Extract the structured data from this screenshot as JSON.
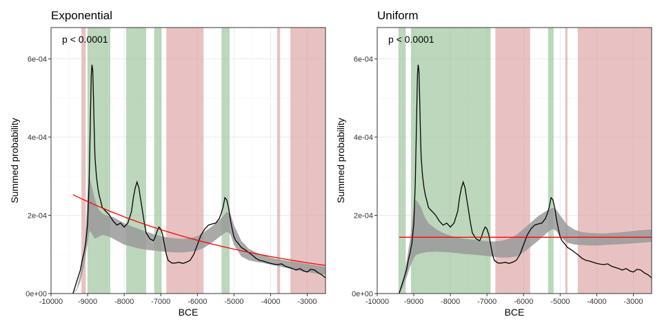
{
  "chart_data": [
    {
      "type": "line",
      "title": "Exponential",
      "xlabel": "BCE",
      "ylabel": "Summed probability",
      "annotation": "p < 0.0001",
      "xlim": [
        -10000,
        -2500
      ],
      "ylim": [
        0,
        0.00068
      ],
      "x_ticks": [
        -10000,
        -9000,
        -8000,
        -7000,
        -6000,
        -5000,
        -4000,
        -3000
      ],
      "x_tick_labels": [
        "-10000",
        "-9000",
        "-8000",
        "-7000",
        "-6000",
        "-5000",
        "-4000",
        "-3000"
      ],
      "y_ticks": [
        0,
        0.0002,
        0.0004,
        0.0006
      ],
      "y_tick_labels": [
        "0e+00",
        "2e-04",
        "4e-04",
        "6e-04"
      ],
      "grid": true,
      "colors": {
        "positive": "#8fbc8f",
        "negative": "#d99a9a",
        "envelope": "#9a9a9a",
        "observed": "#000000",
        "model": "#ff0000"
      },
      "positive_regions": [
        [
          -9000,
          -8380
        ],
        [
          -7950,
          -7400
        ],
        [
          -7180,
          -6980
        ],
        [
          -5340,
          -5120
        ]
      ],
      "negative_regions": [
        [
          -9170,
          -9050
        ],
        [
          -6850,
          -5830
        ],
        [
          -3820,
          -3740
        ],
        [
          -3460,
          -2500
        ]
      ],
      "envelope": {
        "x": [
          -9400,
          -9300,
          -9200,
          -9100,
          -9050,
          -9000,
          -8950,
          -8900,
          -8800,
          -8700,
          -8600,
          -8500,
          -8400,
          -8300,
          -8200,
          -8000,
          -7800,
          -7600,
          -7400,
          -7200,
          -7000,
          -6800,
          -6600,
          -6400,
          -6200,
          -6000,
          -5800,
          -5600,
          -5400,
          -5200,
          -5100,
          -5000,
          -4800,
          -4600,
          -4400,
          -4200,
          -4000,
          -3800,
          -3600,
          -3400,
          -3200,
          -3000,
          -2800,
          -2600,
          -2500
        ],
        "lower": [
          0,
          8e-06,
          3e-05,
          7e-05,
          0.0001,
          0.00013,
          0.00016,
          0.000155,
          0.00014,
          0.000145,
          0.00015,
          0.000148,
          0.000145,
          0.00014,
          0.000135,
          0.000125,
          0.00012,
          0.000115,
          0.000112,
          0.00011,
          0.000108,
          0.000106,
          0.000105,
          0.000105,
          0.000107,
          0.00011,
          0.000118,
          0.00013,
          0.000145,
          0.000158,
          0.000152,
          0.000125,
          9.5e-05,
          8.5e-05,
          8.1e-05,
          7.8e-05,
          7.4e-05,
          7e-05,
          6.6e-05,
          6.2e-05,
          5.8e-05,
          5.5e-05,
          5.2e-05,
          5e-05,
          4.9e-05
        ],
        "upper": [
          0,
          1.2e-05,
          5e-05,
          0.00011,
          0.00016,
          0.00026,
          0.0003,
          0.00028,
          0.00024,
          0.000215,
          0.000205,
          0.0002,
          0.000198,
          0.000195,
          0.00019,
          0.00018,
          0.000172,
          0.000165,
          0.000158,
          0.000152,
          0.000147,
          0.000143,
          0.000141,
          0.00014,
          0.000142,
          0.000147,
          0.000158,
          0.000172,
          0.000188,
          0.000208,
          0.000205,
          0.000175,
          0.000135,
          0.000115,
          0.000105,
          9.8e-05,
          9.2e-05,
          8.8e-05,
          8.5e-05,
          8.2e-05,
          7.9e-05,
          7.6e-05,
          7.3e-05,
          7e-05,
          6.8e-05
        ]
      },
      "observed": {
        "x": [
          -9400,
          -9300,
          -9200,
          -9150,
          -9100,
          -9050,
          -9000,
          -8960,
          -8930,
          -8900,
          -8880,
          -8860,
          -8840,
          -8820,
          -8800,
          -8760,
          -8720,
          -8680,
          -8650,
          -8600,
          -8550,
          -8500,
          -8450,
          -8400,
          -8300,
          -8200,
          -8100,
          -8000,
          -7900,
          -7800,
          -7750,
          -7700,
          -7650,
          -7600,
          -7550,
          -7500,
          -7450,
          -7400,
          -7300,
          -7200,
          -7150,
          -7100,
          -7050,
          -7000,
          -6950,
          -6900,
          -6850,
          -6800,
          -6700,
          -6600,
          -6500,
          -6400,
          -6300,
          -6200,
          -6100,
          -6000,
          -5900,
          -5800,
          -5700,
          -5600,
          -5500,
          -5400,
          -5350,
          -5300,
          -5250,
          -5200,
          -5150,
          -5100,
          -5050,
          -5000,
          -4950,
          -4900,
          -4850,
          -4800,
          -4700,
          -4600,
          -4500,
          -4400,
          -4300,
          -4200,
          -4100,
          -4000,
          -3900,
          -3800,
          -3700,
          -3600,
          -3500,
          -3400,
          -3300,
          -3200,
          -3100,
          -3000,
          -2900,
          -2800,
          -2700,
          -2600,
          -2500
        ],
        "y": [
          0,
          3e-05,
          6e-05,
          8.5e-05,
          0.000105,
          0.00013,
          0.00018,
          0.00028,
          0.00042,
          0.00056,
          0.000585,
          0.00057,
          0.0005,
          0.00042,
          0.00035,
          0.0003,
          0.00027,
          0.00025,
          0.00024,
          0.00022,
          0.000215,
          0.00021,
          0.000205,
          0.0002,
          0.000185,
          0.000175,
          0.00018,
          0.00017,
          0.00018,
          0.00021,
          0.000245,
          0.00027,
          0.000285,
          0.00027,
          0.00024,
          0.00021,
          0.00018,
          0.000155,
          0.00014,
          0.000135,
          0.000145,
          0.00016,
          0.00017,
          0.000165,
          0.00015,
          0.000125,
          0.0001,
          8.5e-05,
          7.8e-05,
          7.8e-05,
          8e-05,
          7.7e-05,
          8e-05,
          8.5e-05,
          0.0001,
          0.000125,
          0.00015,
          0.000165,
          0.000175,
          0.000178,
          0.00018,
          0.000192,
          0.000205,
          0.00022,
          0.000245,
          0.00024,
          0.00022,
          0.00019,
          0.000165,
          0.000145,
          0.000135,
          0.00013,
          0.000124,
          0.000118,
          0.000112,
          0.000105,
          9.8e-05,
          9e-05,
          8.5e-05,
          8.3e-05,
          8e-05,
          7.7e-05,
          7.5e-05,
          7.4e-05,
          7.6e-05,
          7e-05,
          6.7e-05,
          6.4e-05,
          6e-05,
          6.4e-05,
          5.8e-05,
          5.5e-05,
          6.2e-05,
          6e-05,
          5.3e-05,
          4.8e-05,
          4e-05
        ]
      },
      "model": {
        "form": "exponential",
        "x_start": -9400,
        "y_start": 0.000253,
        "x_end": -2500,
        "y_end": 7.2e-05
      }
    },
    {
      "type": "line",
      "title": "Uniform",
      "xlabel": "BCE",
      "ylabel": "Summed probability",
      "annotation": "p < 0.0001",
      "xlim": [
        -10000,
        -2500
      ],
      "ylim": [
        0,
        0.00068
      ],
      "x_ticks": [
        -10000,
        -9000,
        -8000,
        -7000,
        -6000,
        -5000,
        -4000,
        -3000
      ],
      "x_tick_labels": [
        "-10000",
        "-9000",
        "-8000",
        "-7000",
        "-6000",
        "-5000",
        "-4000",
        "-3000"
      ],
      "y_ticks": [
        0,
        0.0002,
        0.0004,
        0.0006
      ],
      "y_tick_labels": [
        "0e+00",
        "2e-04",
        "4e-04",
        "6e-04"
      ],
      "grid": true,
      "colors": {
        "positive": "#8fbc8f",
        "negative": "#d99a9a",
        "envelope": "#9a9a9a",
        "observed": "#000000",
        "model": "#ff0000"
      },
      "positive_regions": [
        [
          -9420,
          -9220
        ],
        [
          -9080,
          -6900
        ],
        [
          -5330,
          -5180
        ]
      ],
      "negative_regions": [
        [
          -6770,
          -5820
        ],
        [
          -4860,
          -4800
        ],
        [
          -4520,
          -2500
        ]
      ],
      "envelope": {
        "x": [
          -9400,
          -9300,
          -9200,
          -9100,
          -9000,
          -8950,
          -8900,
          -8800,
          -8700,
          -8600,
          -8400,
          -8200,
          -8000,
          -7800,
          -7600,
          -7400,
          -7200,
          -7000,
          -6800,
          -6600,
          -6400,
          -6200,
          -6000,
          -5800,
          -5600,
          -5400,
          -5300,
          -5200,
          -5100,
          -5000,
          -4800,
          -4600,
          -4400,
          -4200,
          -4000,
          -3800,
          -3600,
          -3400,
          -3200,
          -3000,
          -2800,
          -2600,
          -2500
        ],
        "lower": [
          0,
          1.5e-05,
          4e-05,
          7e-05,
          9e-05,
          9.8e-05,
          0.0001,
          0.000103,
          0.000105,
          0.000106,
          0.000107,
          0.000106,
          0.000105,
          0.000103,
          0.000101,
          0.0001,
          9.8e-05,
          9.6e-05,
          9.4e-05,
          9.2e-05,
          9.2e-05,
          9.5e-05,
          0.000105,
          0.00012,
          0.000135,
          0.000152,
          0.00016,
          0.000165,
          0.00016,
          0.000145,
          0.00013,
          0.000125,
          0.000124,
          0.000123,
          0.000123,
          0.000124,
          0.000125,
          0.000126,
          0.000127,
          0.000128,
          0.00013,
          0.000131,
          0.000132
        ],
        "upper": [
          0,
          3e-05,
          8e-05,
          0.00014,
          0.00022,
          0.00024,
          0.000235,
          0.00022,
          0.000195,
          0.00018,
          0.000165,
          0.000155,
          0.000148,
          0.000143,
          0.00014,
          0.000138,
          0.000136,
          0.000134,
          0.000133,
          0.000135,
          0.00014,
          0.00015,
          0.000165,
          0.000182,
          0.000198,
          0.00021,
          0.000215,
          0.00022,
          0.000214,
          0.0002,
          0.000175,
          0.000163,
          0.000157,
          0.000155,
          0.000154,
          0.000154,
          0.000155,
          0.000156,
          0.000158,
          0.00016,
          0.000162,
          0.000163,
          0.000164
        ]
      },
      "observed": {
        "x": [
          -9400,
          -9300,
          -9200,
          -9150,
          -9100,
          -9050,
          -9000,
          -8960,
          -8930,
          -8900,
          -8880,
          -8860,
          -8840,
          -8820,
          -8800,
          -8760,
          -8720,
          -8680,
          -8650,
          -8600,
          -8550,
          -8500,
          -8450,
          -8400,
          -8300,
          -8200,
          -8100,
          -8000,
          -7900,
          -7800,
          -7750,
          -7700,
          -7650,
          -7600,
          -7550,
          -7500,
          -7450,
          -7400,
          -7300,
          -7200,
          -7150,
          -7100,
          -7050,
          -7000,
          -6950,
          -6900,
          -6850,
          -6800,
          -6700,
          -6600,
          -6500,
          -6400,
          -6300,
          -6200,
          -6100,
          -6000,
          -5900,
          -5800,
          -5700,
          -5600,
          -5500,
          -5400,
          -5350,
          -5300,
          -5250,
          -5200,
          -5150,
          -5100,
          -5050,
          -5000,
          -4950,
          -4900,
          -4850,
          -4800,
          -4700,
          -4600,
          -4500,
          -4400,
          -4300,
          -4200,
          -4100,
          -4000,
          -3900,
          -3800,
          -3700,
          -3600,
          -3500,
          -3400,
          -3300,
          -3200,
          -3100,
          -3000,
          -2900,
          -2800,
          -2700,
          -2600,
          -2500
        ],
        "y": [
          0,
          3e-05,
          6e-05,
          8.5e-05,
          0.000105,
          0.00013,
          0.00018,
          0.00028,
          0.00042,
          0.00056,
          0.000585,
          0.00057,
          0.0005,
          0.00042,
          0.00035,
          0.0003,
          0.00027,
          0.00025,
          0.00024,
          0.00022,
          0.000215,
          0.00021,
          0.000205,
          0.0002,
          0.000185,
          0.000175,
          0.00018,
          0.00017,
          0.00018,
          0.00021,
          0.000245,
          0.00027,
          0.000285,
          0.00027,
          0.00024,
          0.00021,
          0.00018,
          0.000155,
          0.00014,
          0.000135,
          0.000145,
          0.00016,
          0.00017,
          0.000165,
          0.00015,
          0.000125,
          0.0001,
          8.5e-05,
          7.8e-05,
          7.8e-05,
          8e-05,
          7.7e-05,
          8e-05,
          8.5e-05,
          0.0001,
          0.000125,
          0.00015,
          0.000165,
          0.000175,
          0.000178,
          0.00018,
          0.000192,
          0.000205,
          0.00022,
          0.000245,
          0.00024,
          0.00022,
          0.00019,
          0.000165,
          0.000145,
          0.000135,
          0.00013,
          0.000124,
          0.000118,
          0.000112,
          0.000105,
          9.8e-05,
          9e-05,
          8.5e-05,
          8.3e-05,
          8e-05,
          7.7e-05,
          7.5e-05,
          7.4e-05,
          7.6e-05,
          7e-05,
          6.7e-05,
          6.4e-05,
          6e-05,
          6.4e-05,
          5.8e-05,
          5.5e-05,
          6.2e-05,
          6e-05,
          5.3e-05,
          4.8e-05,
          4e-05
        ]
      },
      "model": {
        "form": "uniform",
        "x_start": -9400,
        "y_start": 0.000144,
        "x_end": -2500,
        "y_end": 0.000144
      }
    }
  ]
}
